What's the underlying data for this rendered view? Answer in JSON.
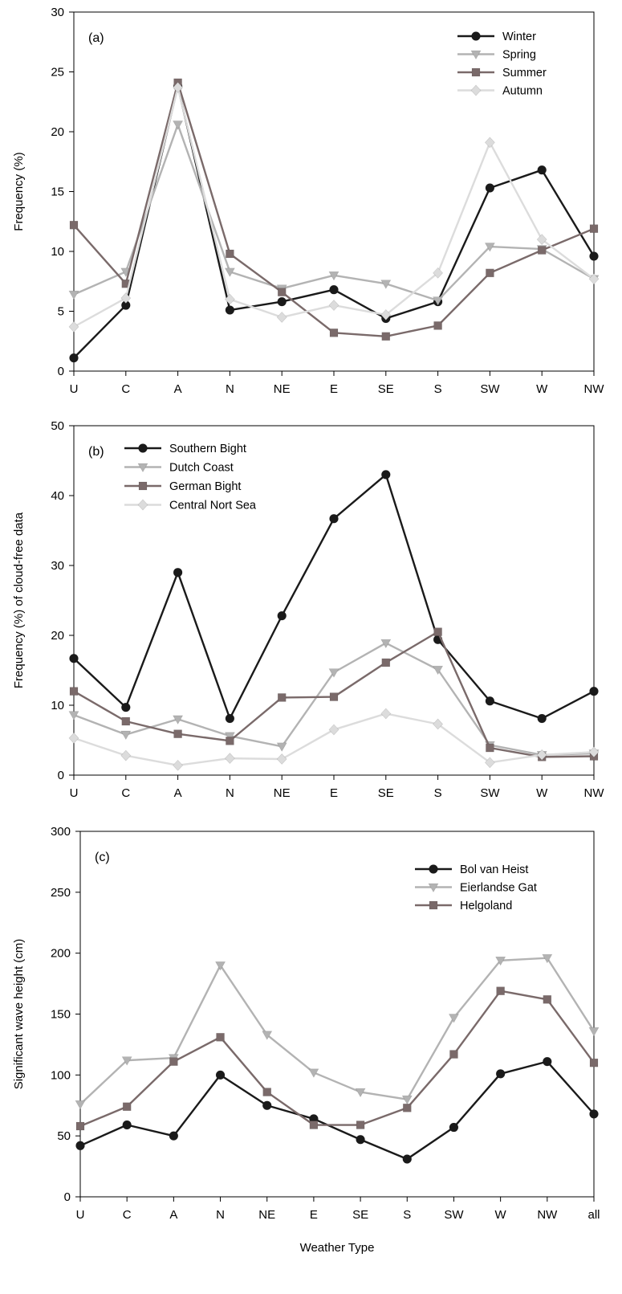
{
  "chart_data": [
    {
      "type": "line",
      "panel_label": "(a)",
      "ylabel": "Frequency (%)",
      "xlabel": "",
      "ylim": [
        0,
        30
      ],
      "yticks": [
        0,
        5,
        10,
        15,
        20,
        25,
        30
      ],
      "categories": [
        "U",
        "C",
        "A",
        "N",
        "NE",
        "E",
        "SE",
        "S",
        "SW",
        "W",
        "NW"
      ],
      "legend_position": "top-right",
      "series": [
        {
          "name": "Winter",
          "color": "#1a1a1a",
          "marker": "circle",
          "values": [
            1.1,
            5.5,
            23.8,
            5.1,
            5.8,
            6.8,
            4.4,
            5.8,
            15.3,
            16.8,
            9.6
          ]
        },
        {
          "name": "Spring",
          "color": "#b3b3b3",
          "marker": "triangle-down",
          "values": [
            6.4,
            8.3,
            20.6,
            8.3,
            6.9,
            8.0,
            7.3,
            5.9,
            10.4,
            10.2,
            7.7
          ]
        },
        {
          "name": "Summer",
          "color": "#7a6a6a",
          "marker": "square",
          "values": [
            12.2,
            7.3,
            24.1,
            9.8,
            6.6,
            3.2,
            2.9,
            3.8,
            8.2,
            10.1,
            11.9
          ]
        },
        {
          "name": "Autumn",
          "color": "#dcdcdc",
          "marker": "diamond",
          "values": [
            3.7,
            6.1,
            23.7,
            6.0,
            4.5,
            5.5,
            4.7,
            8.2,
            19.1,
            11.0,
            7.7
          ]
        }
      ]
    },
    {
      "type": "line",
      "panel_label": "(b)",
      "ylabel": "Frequency (%) of cloud-free data",
      "xlabel": "",
      "ylim": [
        0,
        50
      ],
      "yticks": [
        0,
        10,
        20,
        30,
        40,
        50
      ],
      "categories": [
        "U",
        "C",
        "A",
        "N",
        "NE",
        "E",
        "SE",
        "S",
        "SW",
        "W",
        "NW"
      ],
      "legend_position": "top-left",
      "series": [
        {
          "name": "Southern Bight",
          "color": "#1a1a1a",
          "marker": "circle",
          "values": [
            16.7,
            9.7,
            29.0,
            8.1,
            22.8,
            36.7,
            43.0,
            19.4,
            10.6,
            8.1,
            12.0
          ]
        },
        {
          "name": "Dutch Coast",
          "color": "#b3b3b3",
          "marker": "triangle-down",
          "values": [
            8.6,
            5.8,
            8.0,
            5.6,
            4.1,
            14.7,
            18.9,
            15.1,
            4.3,
            2.9,
            3.1
          ]
        },
        {
          "name": "German Bight",
          "color": "#7a6a6a",
          "marker": "square",
          "values": [
            12.0,
            7.7,
            5.9,
            4.9,
            11.1,
            11.2,
            16.1,
            20.5,
            3.9,
            2.6,
            2.7
          ]
        },
        {
          "name": "Central Nort Sea",
          "color": "#dcdcdc",
          "marker": "diamond",
          "values": [
            5.3,
            2.8,
            1.4,
            2.4,
            2.3,
            6.5,
            8.8,
            7.3,
            1.8,
            2.9,
            3.3
          ]
        }
      ]
    },
    {
      "type": "line",
      "panel_label": "(c)",
      "ylabel": "Significant wave height (cm)",
      "xlabel": "Weather Type",
      "ylim": [
        0,
        300
      ],
      "yticks": [
        0,
        50,
        100,
        150,
        200,
        250,
        300
      ],
      "categories": [
        "U",
        "C",
        "A",
        "N",
        "NE",
        "E",
        "SE",
        "S",
        "SW",
        "W",
        "NW",
        "all"
      ],
      "legend_position": "top-right",
      "series": [
        {
          "name": "Bol van Heist",
          "color": "#1a1a1a",
          "marker": "circle",
          "values": [
            42,
            59,
            50,
            100,
            75,
            64,
            47,
            31,
            57,
            101,
            111,
            68
          ]
        },
        {
          "name": "Eierlandse Gat",
          "color": "#b3b3b3",
          "marker": "triangle-down",
          "values": [
            76,
            112,
            114,
            190,
            133,
            102,
            86,
            80,
            147,
            194,
            196,
            136
          ]
        },
        {
          "name": "Helgoland",
          "color": "#7a6a6a",
          "marker": "square",
          "values": [
            58,
            74,
            111,
            131,
            86,
            59,
            59,
            73,
            117,
            169,
            162,
            110
          ]
        }
      ]
    }
  ]
}
